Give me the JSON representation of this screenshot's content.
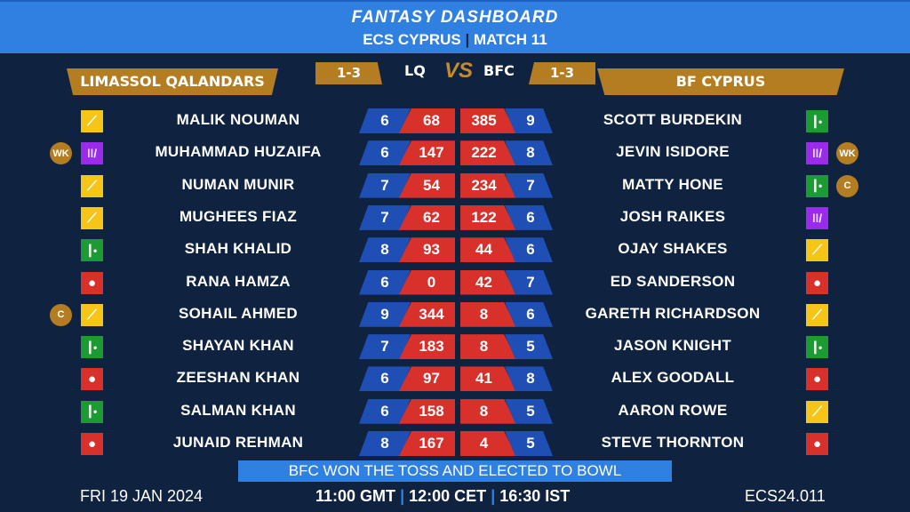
{
  "header": {
    "title": "FANTASY DASHBOARD",
    "league": "ECS CYPRUS",
    "match": "MATCH 11"
  },
  "teams": {
    "left": {
      "name": "LIMASSOL QALANDARS",
      "abbr": "LQ",
      "score": "1-3"
    },
    "right": {
      "name": "BF CYPRUS",
      "abbr": "BFC",
      "score": "1-3"
    },
    "vs": "VS"
  },
  "colors": {
    "header": "#2f80e0",
    "background": "#0f2341",
    "gold": "#b57d22",
    "stat_blue": "#1f4fb5",
    "stat_red": "#d8302a",
    "batter": "#f5c518",
    "wicketkeeper": "#9b2bea",
    "allrounder": "#1c9b32",
    "bowler": "#d8302a"
  },
  "left_players": [
    {
      "name": "MALIK NOUMAN",
      "role": "batter",
      "badge": "",
      "a": "6",
      "b": "68"
    },
    {
      "name": "MUHAMMAD HUZAIFA",
      "role": "wicketkeeper",
      "badge": "WK",
      "a": "6",
      "b": "147"
    },
    {
      "name": "NUMAN MUNIR",
      "role": "batter",
      "badge": "",
      "a": "7",
      "b": "54"
    },
    {
      "name": "MUGHEES FIAZ",
      "role": "batter",
      "badge": "",
      "a": "7",
      "b": "62"
    },
    {
      "name": "SHAH KHALID",
      "role": "allrounder",
      "badge": "",
      "a": "8",
      "b": "93"
    },
    {
      "name": "RANA HAMZA",
      "role": "bowler",
      "badge": "",
      "a": "6",
      "b": "0"
    },
    {
      "name": "SOHAIL AHMED",
      "role": "batter",
      "badge": "C",
      "a": "9",
      "b": "344"
    },
    {
      "name": "SHAYAN KHAN",
      "role": "allrounder",
      "badge": "",
      "a": "7",
      "b": "183"
    },
    {
      "name": "ZEESHAN KHAN",
      "role": "bowler",
      "badge": "",
      "a": "6",
      "b": "97"
    },
    {
      "name": "SALMAN KHAN",
      "role": "allrounder",
      "badge": "",
      "a": "6",
      "b": "158"
    },
    {
      "name": "JUNAID REHMAN",
      "role": "bowler",
      "badge": "",
      "a": "8",
      "b": "167"
    }
  ],
  "right_players": [
    {
      "name": "SCOTT BURDEKIN",
      "role": "allrounder",
      "badge": "",
      "a": "385",
      "b": "9"
    },
    {
      "name": "JEVIN ISIDORE",
      "role": "wicketkeeper",
      "badge": "WK",
      "a": "222",
      "b": "8"
    },
    {
      "name": "MATTY HONE",
      "role": "allrounder",
      "badge": "C",
      "a": "234",
      "b": "7"
    },
    {
      "name": "JOSH RAIKES",
      "role": "wicketkeeper",
      "badge": "",
      "a": "122",
      "b": "6"
    },
    {
      "name": "OJAY SHAKES",
      "role": "batter",
      "badge": "",
      "a": "44",
      "b": "6"
    },
    {
      "name": "ED SANDERSON",
      "role": "bowler",
      "badge": "",
      "a": "42",
      "b": "7"
    },
    {
      "name": "GARETH RICHARDSON",
      "role": "batter",
      "badge": "",
      "a": "8",
      "b": "6"
    },
    {
      "name": "JASON KNIGHT",
      "role": "allrounder",
      "badge": "",
      "a": "8",
      "b": "5"
    },
    {
      "name": "ALEX GOODALL",
      "role": "bowler",
      "badge": "",
      "a": "41",
      "b": "8"
    },
    {
      "name": "AARON ROWE",
      "role": "batter",
      "badge": "",
      "a": "8",
      "b": "5"
    },
    {
      "name": "STEVE THORNTON",
      "role": "bowler",
      "badge": "",
      "a": "4",
      "b": "5"
    }
  ],
  "footer": {
    "toss": "BFC WON THE TOSS AND ELECTED TO BOWL",
    "date": "FRI 19 JAN 2024",
    "time_gmt": "11:00 GMT",
    "time_cet": "12:00 CET",
    "time_ist": "16:30 IST",
    "code": "ECS24.011"
  }
}
